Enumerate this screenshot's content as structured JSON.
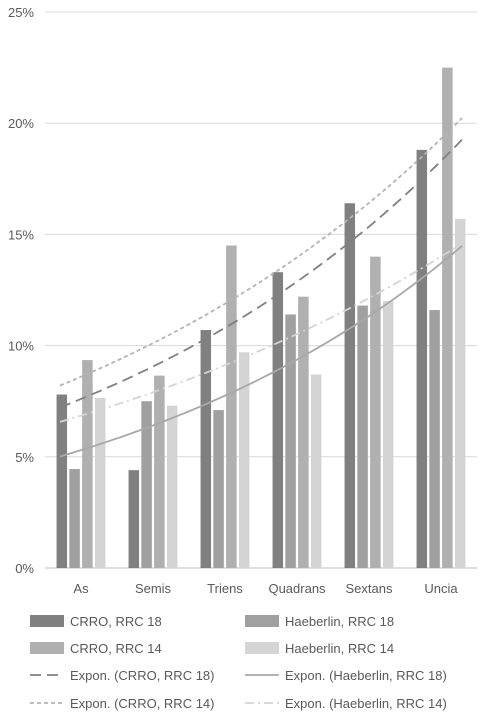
{
  "chart_data": {
    "type": "bar",
    "categories": [
      "As",
      "Semis",
      "Triens",
      "Quadrans",
      "Sextans",
      "Uncia"
    ],
    "y_ticks": [
      "0%",
      "5%",
      "10%",
      "15%",
      "20%",
      "25%"
    ],
    "ylim": [
      0,
      25
    ],
    "grid": true,
    "legend_position": "bottom",
    "series": [
      {
        "name": "CRRO, RRC 18",
        "color": "#808080",
        "values": [
          7.8,
          4.4,
          10.7,
          13.3,
          16.4,
          18.8
        ]
      },
      {
        "name": "Haeberlin, RRC 18",
        "color": "#a0a0a0",
        "values": [
          4.45,
          7.5,
          7.1,
          11.4,
          11.8,
          11.6
        ]
      },
      {
        "name": "CRRO, RRC 14",
        "color": "#b0b0b0",
        "values": [
          9.35,
          8.65,
          14.5,
          12.2,
          14.0,
          22.5
        ]
      },
      {
        "name": "Haeberlin, RRC 14",
        "color": "#d4d4d4",
        "values": [
          7.65,
          7.3,
          9.7,
          8.7,
          12.0,
          15.7
        ]
      }
    ],
    "trendlines": [
      {
        "name": "Expon. (CRRO, RRC 18)",
        "color": "#808080",
        "dash": "long-dash",
        "values": [
          7.6,
          8.95,
          10.65,
          12.75,
          15.25,
          18.3
        ]
      },
      {
        "name": "Expon. (Haeberlin, RRC 18)",
        "color": "#a8a8a8",
        "dash": "solid",
        "values": [
          5.3,
          6.25,
          7.6,
          9.15,
          11.15,
          13.7
        ]
      },
      {
        "name": "Expon. (CRRO, RRC 14)",
        "color": "#b4b4b4",
        "dash": "short-dash",
        "values": [
          8.6,
          10.0,
          11.75,
          13.85,
          16.2,
          19.3
        ]
      },
      {
        "name": "Expon. (Haeberlin, RRC 14)",
        "color": "#d4d4d4",
        "dash": "dash-dot",
        "values": [
          6.85,
          7.7,
          8.95,
          10.4,
          11.95,
          14.0
        ]
      }
    ]
  }
}
